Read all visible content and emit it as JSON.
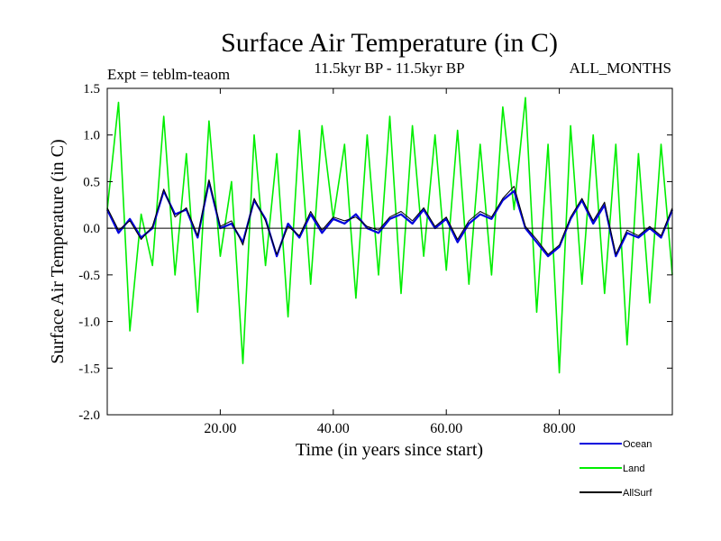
{
  "chart_data": {
    "type": "line",
    "title": "Surface Air Temperature (in C)",
    "subtitle": "11.5kyr BP - 11.5kyr BP",
    "experiment_label": "Expt = teblm-teaom",
    "period_label": "ALL_MONTHS",
    "xlabel": "Time (in years since start)",
    "ylabel": "Surface Air Temperature (in C)",
    "xlim": [
      0,
      100
    ],
    "ylim": [
      -2.0,
      1.5
    ],
    "x_ticks": [
      20,
      40,
      60,
      80
    ],
    "x_tick_labels": [
      "20.00",
      "40.00",
      "60.00",
      "80.00"
    ],
    "y_ticks": [
      -2.0,
      -1.5,
      -1.0,
      -0.5,
      0.0,
      0.5,
      1.0,
      1.5
    ],
    "y_tick_labels": [
      "-2.0",
      "-1.5",
      "-1.0",
      "-0.5",
      "0.0",
      "0.5",
      "1.0",
      "1.5"
    ],
    "zero_line": 0.0,
    "series": [
      {
        "name": "Land",
        "color": "#00ee00",
        "x": [
          0,
          2,
          4,
          6,
          8,
          10,
          12,
          14,
          16,
          18,
          20,
          22,
          24,
          26,
          28,
          30,
          32,
          34,
          36,
          38,
          40,
          42,
          44,
          46,
          48,
          50,
          52,
          54,
          56,
          58,
          60,
          62,
          64,
          66,
          68,
          70,
          72,
          74,
          76,
          78,
          80,
          82,
          84,
          86,
          88,
          90,
          92,
          94,
          96,
          98,
          100
        ],
        "values": [
          0.2,
          1.35,
          -1.1,
          0.15,
          -0.4,
          1.2,
          -0.5,
          0.8,
          -0.9,
          1.15,
          -0.3,
          0.5,
          -1.45,
          1.0,
          -0.4,
          0.8,
          -0.95,
          1.05,
          -0.6,
          1.1,
          0.1,
          0.9,
          -0.75,
          1.0,
          -0.5,
          1.2,
          -0.7,
          1.1,
          -0.3,
          1.0,
          -0.45,
          1.05,
          -0.6,
          0.9,
          -0.5,
          1.3,
          0.2,
          1.4,
          -0.9,
          0.9,
          -1.55,
          1.1,
          -0.6,
          1.0,
          -0.7,
          0.9,
          -1.25,
          0.8,
          -0.8,
          0.9,
          -0.5
        ]
      },
      {
        "name": "Ocean",
        "color": "#0000dd",
        "x": [
          0,
          2,
          4,
          6,
          8,
          10,
          12,
          14,
          16,
          18,
          20,
          22,
          24,
          26,
          28,
          30,
          32,
          34,
          36,
          38,
          40,
          42,
          44,
          46,
          48,
          50,
          52,
          54,
          56,
          58,
          60,
          62,
          64,
          66,
          68,
          70,
          72,
          74,
          76,
          78,
          80,
          82,
          84,
          86,
          88,
          90,
          92,
          94,
          96,
          98,
          100
        ],
        "values": [
          0.2,
          -0.05,
          0.1,
          -0.1,
          0.0,
          0.4,
          0.15,
          0.2,
          -0.1,
          0.5,
          0.0,
          0.05,
          -0.15,
          0.3,
          0.1,
          -0.3,
          0.05,
          -0.1,
          0.15,
          -0.05,
          0.1,
          0.05,
          0.15,
          0.0,
          -0.05,
          0.1,
          0.15,
          0.05,
          0.2,
          0.0,
          0.1,
          -0.15,
          0.05,
          0.15,
          0.1,
          0.3,
          0.4,
          0.0,
          -0.15,
          -0.3,
          -0.2,
          0.1,
          0.3,
          0.05,
          0.25,
          -0.3,
          -0.05,
          -0.1,
          0.0,
          -0.1,
          0.2
        ]
      },
      {
        "name": "AllSurf",
        "color": "#000000",
        "x": [
          0,
          2,
          4,
          6,
          8,
          10,
          12,
          14,
          16,
          18,
          20,
          22,
          24,
          26,
          28,
          30,
          32,
          34,
          36,
          38,
          40,
          42,
          44,
          46,
          48,
          50,
          52,
          54,
          56,
          58,
          60,
          62,
          64,
          66,
          68,
          70,
          72,
          74,
          76,
          78,
          80,
          82,
          84,
          86,
          88,
          90,
          92,
          94,
          96,
          98,
          100
        ],
        "values": [
          0.22,
          -0.02,
          0.08,
          -0.12,
          0.02,
          0.42,
          0.12,
          0.22,
          -0.08,
          0.52,
          0.02,
          0.08,
          -0.18,
          0.32,
          0.08,
          -0.28,
          0.02,
          -0.08,
          0.18,
          -0.02,
          0.12,
          0.08,
          0.12,
          0.02,
          -0.02,
          0.12,
          0.18,
          0.08,
          0.22,
          0.02,
          0.12,
          -0.12,
          0.08,
          0.18,
          0.12,
          0.32,
          0.45,
          0.02,
          -0.12,
          -0.28,
          -0.18,
          0.12,
          0.32,
          0.08,
          0.28,
          -0.28,
          -0.02,
          -0.08,
          0.02,
          -0.08,
          0.22
        ]
      }
    ],
    "legend_order": [
      "Ocean",
      "Land",
      "AllSurf"
    ],
    "legend_position": "bottom-right"
  }
}
